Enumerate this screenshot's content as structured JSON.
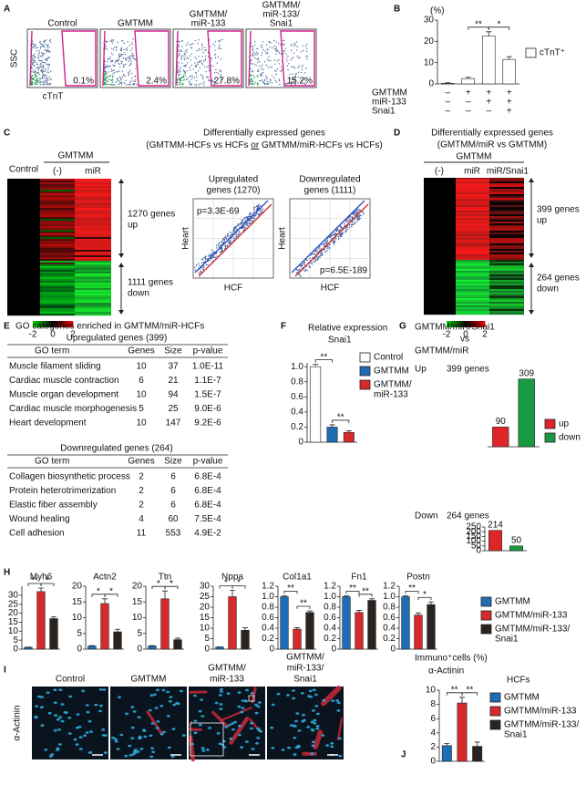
{
  "panel_labels": [
    "A",
    "B",
    "C",
    "D",
    "E",
    "F",
    "G",
    "H",
    "I",
    "J"
  ],
  "panel_a": {
    "y_label": "SSC",
    "x_label": "cTnT",
    "plots": [
      {
        "title": [
          "Control"
        ],
        "percent": "0.1%"
      },
      {
        "title": [
          "GMTMM"
        ],
        "percent": "2.4%"
      },
      {
        "title": [
          "GMTMM/",
          "miR-133"
        ],
        "percent": "27.8%"
      },
      {
        "title": [
          "GMTMM/",
          "miR-133/",
          "Snai1"
        ],
        "percent": "15.2%"
      }
    ]
  },
  "panel_c": {
    "title": "Differentially expressed genes",
    "subtitle": [
      "(GMTMM-HCFs vs HCFs ",
      "or",
      " GMTMM/miR-HCFs vs HCFs)"
    ],
    "group": "GMTMM",
    "control": "Control",
    "columns": [
      "(-)",
      "miR"
    ],
    "up": [
      "1270 genes",
      "up"
    ],
    "down": [
      "1111 genes",
      "down"
    ],
    "colorbar": [
      "-2",
      "0",
      "2"
    ],
    "scatter": [
      {
        "title": [
          "Upregulated",
          "genes (1270)"
        ],
        "p": "p=3.3E-69"
      },
      {
        "title": [
          "Downregulated",
          "genes (1111)"
        ],
        "p": "p=6.5E-189"
      }
    ],
    "y_label": "Heart",
    "x_label": "HCF"
  },
  "panel_d": {
    "title": "Differentially expressed genes",
    "subtitle": "(GMTMM/miR  vs GMTMM)",
    "group": "GMTMM",
    "columns": [
      "(-)",
      "miR",
      "miR/Snai1"
    ],
    "up": [
      "399 genes",
      "up"
    ],
    "down": [
      "264 genes",
      "down"
    ],
    "colorbar": [
      "-2",
      "0",
      "2"
    ]
  },
  "panel_e": {
    "title": "GO categories enriched in GMTMM/miR-HCFs",
    "sections": [
      {
        "heading": "Upregulated genes (399)",
        "columns": [
          "GO term",
          "Genes",
          "Size",
          "p-value"
        ],
        "rows": [
          [
            "Muscle filament sliding",
            10,
            37,
            "1.0E-11"
          ],
          [
            "Cardiac muscle contraction",
            6,
            21,
            "1.1E-7"
          ],
          [
            "Muscle organ development",
            10,
            94,
            "1.5E-7"
          ],
          [
            "Cardiac muscle morphogenesis",
            5,
            25,
            "9.0E-6"
          ],
          [
            "Heart development",
            10,
            147,
            "9.2E-6"
          ]
        ]
      },
      {
        "heading": "Downregulated genes (264)",
        "columns": [
          "GO term",
          "Genes",
          "Size",
          "p-value"
        ],
        "rows": [
          [
            "Collagen biosynthetic process",
            2,
            6,
            "6.8E-4"
          ],
          [
            "Protein heterotrimerization",
            2,
            6,
            "6.8E-4"
          ],
          [
            "Elastic fiber assembly",
            2,
            6,
            "6.8E-4"
          ],
          [
            "Wound healing",
            4,
            60,
            "7.5E-4"
          ],
          [
            "Cell adhesion",
            11,
            553,
            "4.9E-2"
          ]
        ]
      }
    ]
  },
  "panel_g": {
    "title": [
      "GMTMM/miR/Snai1",
      "vs",
      "GMTMM/miR"
    ]
  },
  "panel_h": {
    "legend": [
      {
        "name": "GMTMM",
        "color": "#1f6db5"
      },
      {
        "name": "GMTMM/miR-133",
        "color": "#d62a2a"
      },
      {
        "name": [
          "GMTMM/miR-133/",
          "Snai1"
        ],
        "color": "#2a2420"
      }
    ]
  },
  "panel_i": {
    "y_label": "α-Actinin",
    "images": [
      {
        "title": [
          "Control"
        ]
      },
      {
        "title": [
          "GMTMM"
        ]
      },
      {
        "title": [
          "GMTMM/",
          "miR-133"
        ]
      },
      {
        "title": [
          "GMTMM/",
          "miR-133/",
          "Snai1"
        ]
      }
    ]
  },
  "chart_data": [
    {
      "type": "bar",
      "y_label": "(%)",
      "values": [
        0.3,
        2.5,
        22.5,
        11.5
      ],
      "errors": [
        0.2,
        0.6,
        2,
        1.3
      ],
      "colors": [
        "#ffffff",
        "#ffffff",
        "#ffffff",
        "#ffffff"
      ],
      "ylim": [
        0,
        30
      ],
      "yticks": [
        0,
        10,
        20,
        30
      ],
      "legend": [
        {
          "name": "cTnT⁺",
          "color": "#ffffff"
        }
      ],
      "rows": [
        {
          "name": "GMTMM",
          "signs": [
            "–",
            "+",
            "+",
            "+"
          ]
        },
        {
          "name": "miR-133",
          "signs": [
            "–",
            "–",
            "+",
            "+"
          ]
        },
        {
          "name": "Snai1",
          "signs": [
            "–",
            "–",
            "–",
            "+"
          ]
        }
      ],
      "significance": [
        "**",
        "*"
      ]
    },
    {
      "type": "bar",
      "title": "Relative expression",
      "subtitle": "Snai1",
      "values": [
        1,
        0.2,
        0.13
      ],
      "errors": [
        0.03,
        0.03,
        0.02
      ],
      "colors": [
        "#ffffff",
        "#1f6db5",
        "#d62a2a"
      ],
      "ylim": [
        0,
        1.05
      ],
      "yticks": [
        0,
        0.2,
        0.4,
        0.6,
        0.8,
        {
          "value": 1,
          "label": "1.0"
        }
      ],
      "legend": [
        {
          "name": "Control",
          "color": "#ffffff"
        },
        {
          "name": "GMTMM",
          "color": "#1f6db5"
        },
        {
          "name": [
            "GMTMM/",
            "miR-133"
          ],
          "color": "#d62a2a"
        }
      ],
      "significance": [
        "**",
        "**"
      ]
    },
    {
      "type": "bar",
      "title": "Up",
      "subtitle": "399 genes",
      "values": [
        90,
        309
      ],
      "colors": [
        "#e0252a",
        "#1a9a40"
      ],
      "ylim": [
        0,
        320
      ],
      "show_values": true,
      "legend": [
        {
          "name": "up",
          "color": "#e0252a"
        },
        {
          "name": "down",
          "color": "#1a9a40"
        }
      ]
    },
    {
      "type": "bar",
      "title": "Down",
      "subtitle": "264 genes",
      "values": [
        214,
        50
      ],
      "colors": [
        "#e0252a",
        "#1a9a40"
      ],
      "ylim": [
        0,
        250
      ],
      "yticks": [
        0,
        50,
        100,
        150,
        200,
        250
      ],
      "show_values": true
    },
    {
      "type": "bar",
      "title": "Myh6",
      "values": [
        1,
        32,
        17
      ],
      "errors": [
        0.1,
        2,
        1
      ],
      "colors": [
        "#1f6db5",
        "#d62a2a",
        "#2a2420"
      ],
      "ylim": [
        0,
        35
      ],
      "yticks": [
        0,
        5,
        10,
        15,
        20,
        25,
        30
      ],
      "significance": [
        "**",
        "*"
      ]
    },
    {
      "type": "bar",
      "title": "Actn2",
      "values": [
        1,
        14.5,
        5.5
      ],
      "errors": [
        0.1,
        1.5,
        0.8
      ],
      "colors": [
        "#1f6db5",
        "#d62a2a",
        "#2a2420"
      ],
      "ylim": [
        0,
        20
      ],
      "yticks": [
        0,
        5,
        10,
        15,
        20
      ],
      "significance": [
        "*",
        "*"
      ]
    },
    {
      "type": "bar",
      "title": "Ttn",
      "values": [
        1,
        16,
        3
      ],
      "errors": [
        0.1,
        2.5,
        0.5
      ],
      "colors": [
        "#1f6db5",
        "#d62a2a",
        "#2a2420"
      ],
      "ylim": [
        0,
        20
      ],
      "yticks": [
        0,
        5,
        10,
        15,
        20
      ],
      "significance": [
        "*",
        "*"
      ]
    },
    {
      "type": "bar",
      "title": "Nppa",
      "values": [
        1,
        25,
        9
      ],
      "errors": [
        0.1,
        3,
        1.2
      ],
      "colors": [
        "#1f6db5",
        "#d62a2a",
        "#2a2420"
      ],
      "ylim": [
        0,
        30
      ],
      "yticks": [
        0,
        5,
        10,
        15,
        20,
        25,
        30
      ],
      "significance": [
        "*",
        "*"
      ]
    },
    {
      "type": "bar",
      "title": "Col1a1",
      "values": [
        1,
        0.38,
        0.7
      ],
      "errors": [
        0.02,
        0.03,
        0.03
      ],
      "colors": [
        "#1f6db5",
        "#d62a2a",
        "#2a2420"
      ],
      "ylim": [
        0,
        1.2
      ],
      "yticks": [
        0,
        0.2,
        0.4,
        0.6,
        0.8,
        {
          "value": 1,
          "label": "1.0"
        },
        1.2
      ],
      "significance": [
        "**",
        "**"
      ]
    },
    {
      "type": "bar",
      "title": "Fn1",
      "values": [
        1,
        0.7,
        0.93
      ],
      "errors": [
        0.02,
        0.04,
        0.03
      ],
      "colors": [
        "#1f6db5",
        "#d62a2a",
        "#2a2420"
      ],
      "ylim": [
        0,
        1.2
      ],
      "yticks": [
        0,
        0.2,
        0.4,
        0.6,
        0.8,
        {
          "value": 1,
          "label": "1.0"
        },
        1.2
      ],
      "significance": [
        "**",
        "**"
      ]
    },
    {
      "type": "bar",
      "title": "Postn",
      "values": [
        1,
        0.65,
        0.85
      ],
      "errors": [
        0.02,
        0.04,
        0.05
      ],
      "colors": [
        "#1f6db5",
        "#d62a2a",
        "#2a2420"
      ],
      "ylim": [
        0,
        1.2
      ],
      "yticks": [
        0,
        0.2,
        0.4,
        0.6,
        0.8,
        {
          "value": 1,
          "label": "1.0"
        },
        1.2
      ],
      "significance": [
        "**",
        "*"
      ]
    },
    {
      "type": "bar",
      "title": "Immuno⁺cells (%)",
      "subtitle": "α-Actinin",
      "note": "HCFs",
      "values": [
        2.2,
        8.2,
        2.1
      ],
      "errors": [
        0.3,
        0.8,
        0.6
      ],
      "colors": [
        "#1f6db5",
        "#d62a2a",
        "#2a2420"
      ],
      "ylim": [
        0,
        10
      ],
      "yticks": [
        0,
        2,
        4,
        6,
        8,
        10
      ],
      "legend": [
        {
          "name": "GMTMM",
          "color": "#1f6db5"
        },
        {
          "name": "GMTMM/miR-133",
          "color": "#d62a2a"
        },
        {
          "name": [
            "GMTMM/miR-133/",
            "Snai1"
          ],
          "color": "#2a2420"
        }
      ],
      "significance": [
        "**",
        "**"
      ]
    }
  ]
}
